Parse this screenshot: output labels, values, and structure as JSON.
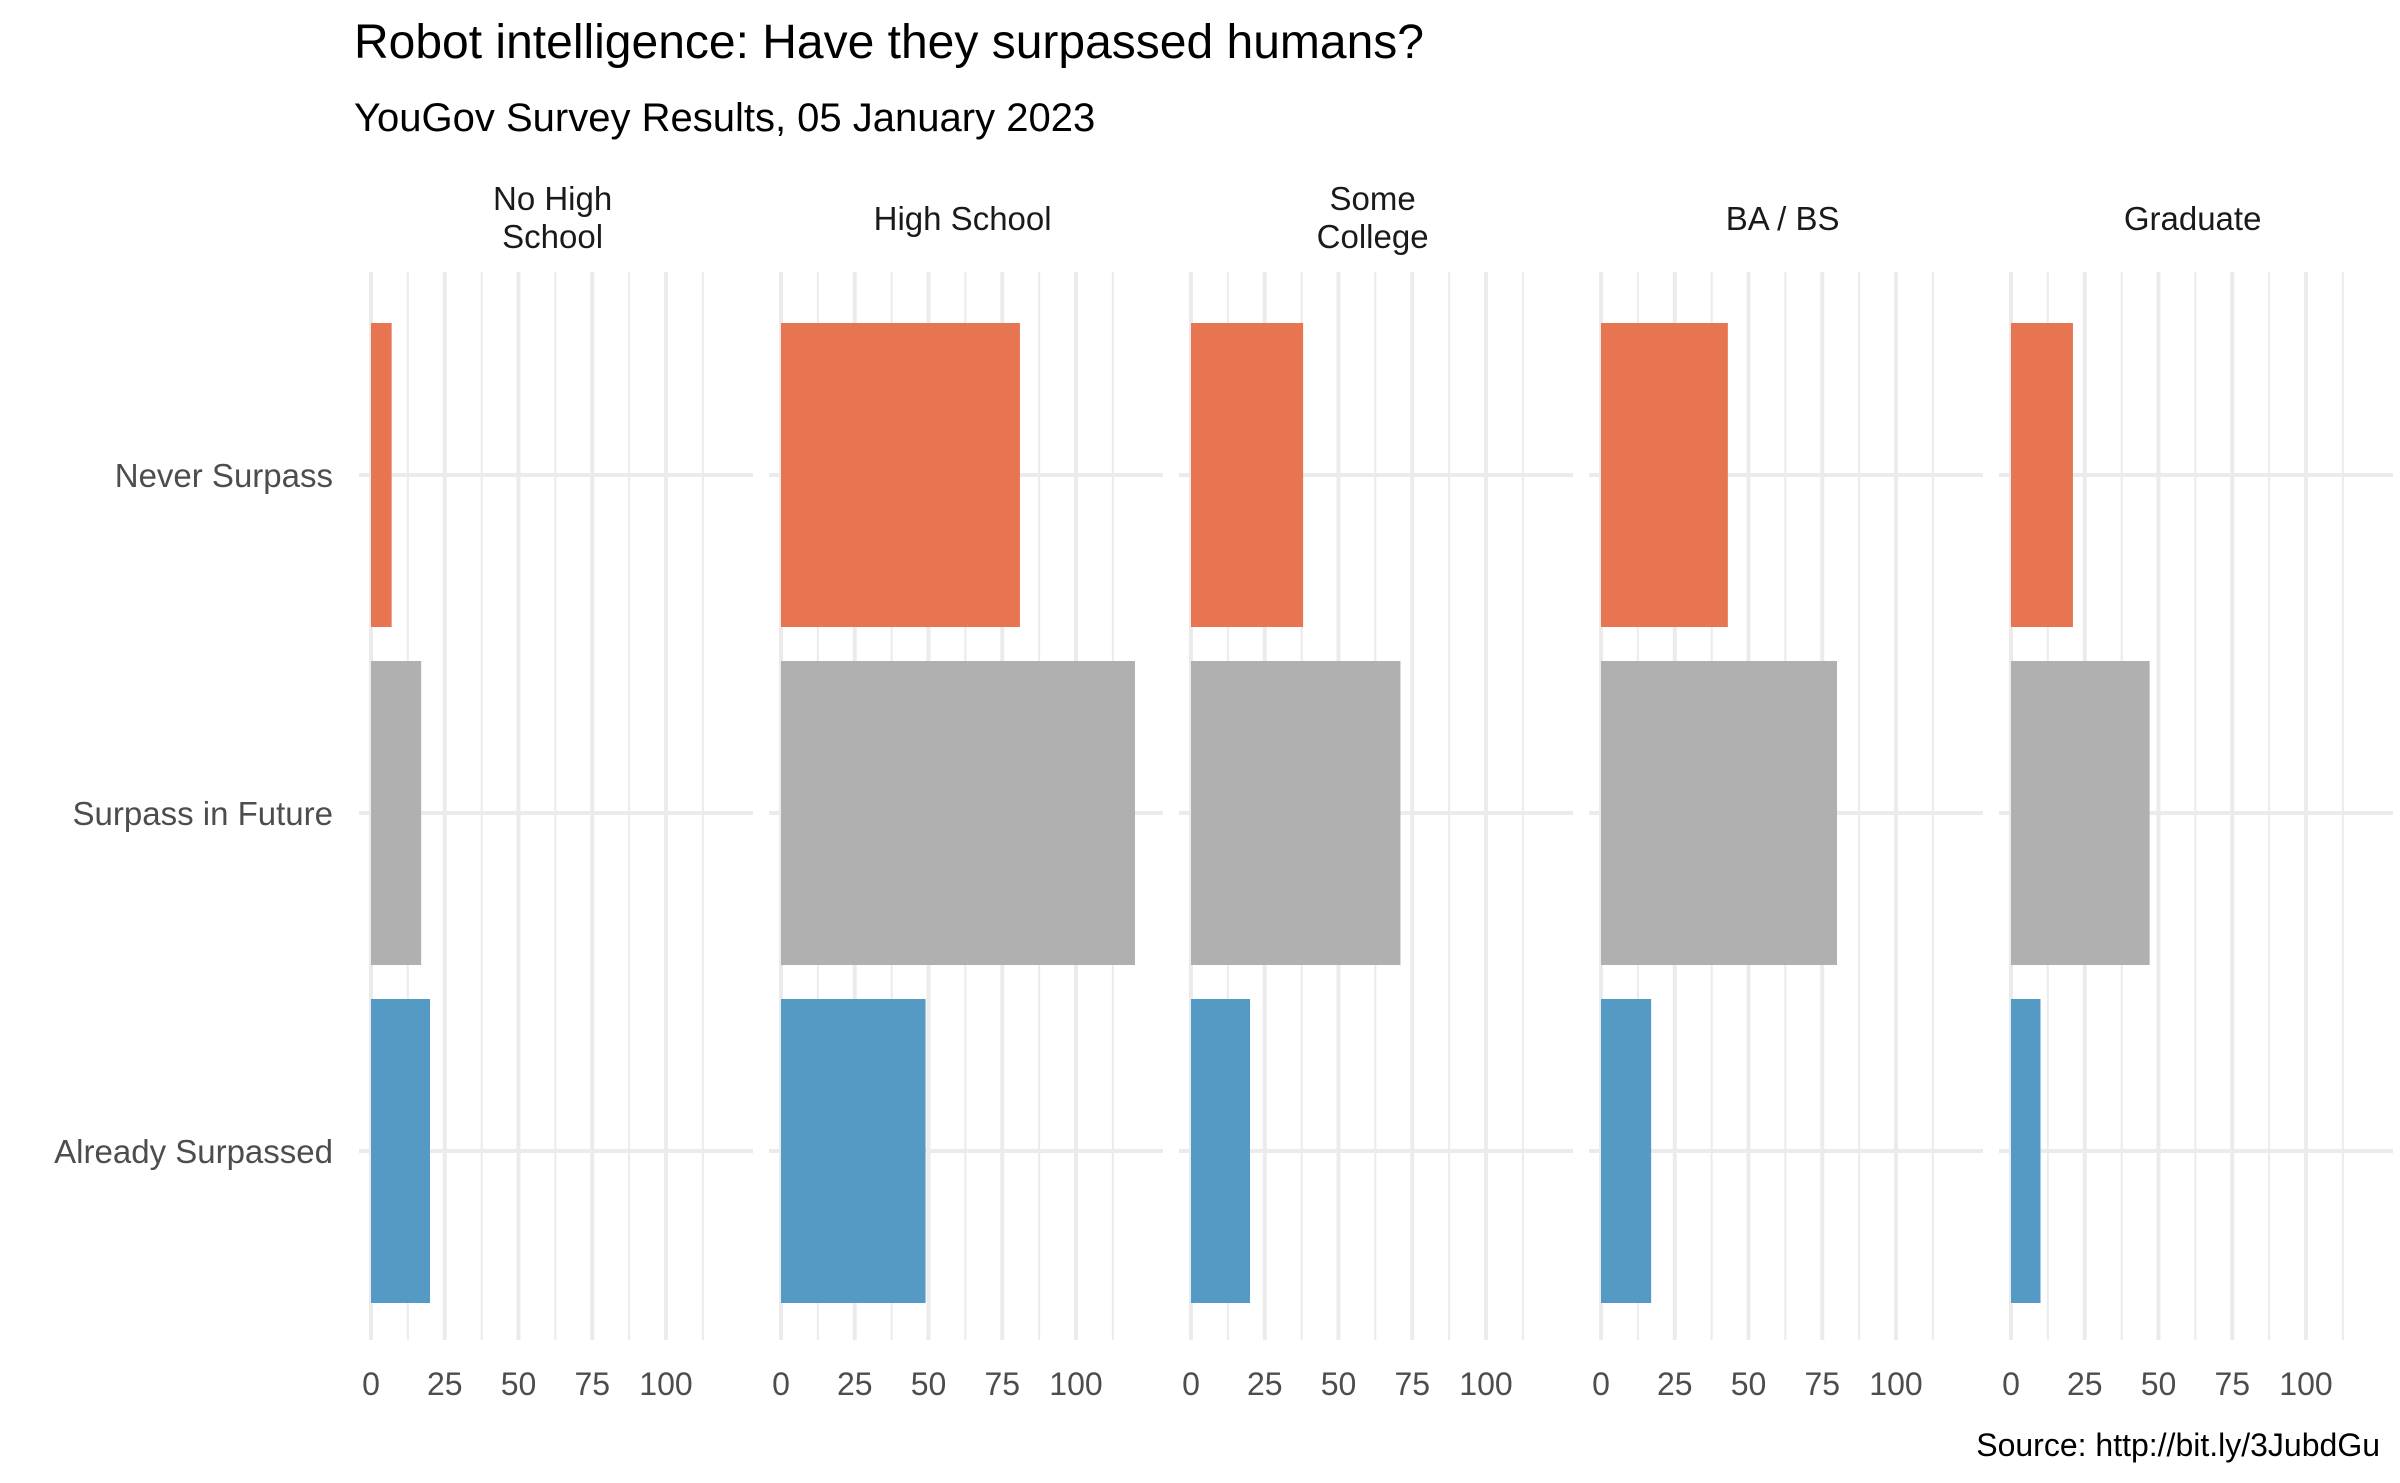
{
  "chart_data": {
    "type": "bar",
    "orientation": "horizontal",
    "facet": "small-multiples",
    "title": "Robot intelligence: Have they surpassed humans?",
    "subtitle": "YouGov Survey Results, 05 January 2023",
    "caption": "Source: http://bit.ly/3JubdGu",
    "xlabel": "",
    "ylabel": "",
    "xlim": [
      0,
      120
    ],
    "x_ticks": [
      "0",
      "25",
      "50",
      "75",
      "100"
    ],
    "x_tick_values": [
      0,
      25,
      50,
      75,
      100
    ],
    "categories": [
      "Never Surpass",
      "Surpass in Future",
      "Already Surpassed"
    ],
    "colors": {
      "Never Surpass": "#E87552",
      "Surpass in Future": "#B0B0B0",
      "Already Surpassed": "#5599C5",
      "grid": "#EBEBEB"
    },
    "grid": true,
    "legend": "none",
    "panels": [
      {
        "label": "No High\nSchool",
        "values": [
          7,
          17,
          20
        ]
      },
      {
        "label": "High School",
        "values": [
          81,
          120,
          49
        ]
      },
      {
        "label": "Some\nCollege",
        "values": [
          38,
          71,
          20
        ]
      },
      {
        "label": "BA / BS",
        "values": [
          43,
          80,
          17
        ]
      },
      {
        "label": "Graduate",
        "values": [
          21,
          47,
          10
        ]
      }
    ]
  }
}
